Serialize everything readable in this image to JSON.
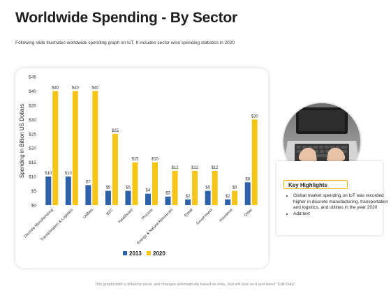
{
  "page": {
    "title": "Worldwide Spending - By Sector",
    "subtitle": "Following slide illustrates worldwide spending graph on IoT. It includes sector wise spending statistics in 2020",
    "footer": "This graph/chart is linked to excel, and changes automatically based on data. Just left click on it and select \"Edit Data\"."
  },
  "highlights": {
    "heading": "Key Highlights",
    "items": [
      "Global market spending on IoT was recorded higher in discrete manufacturing, transportation and logistics, and utilities in the year 2020",
      "Add text"
    ]
  },
  "photo": {
    "icon": "laptop-typing-photo"
  },
  "chart_data": {
    "type": "bar",
    "title": "",
    "xlabel": "",
    "ylabel": "Spending in Billion US Dollars",
    "ylim": [
      0,
      45
    ],
    "yticks": [
      "$0",
      "$5",
      "$10",
      "$15",
      "$20",
      "$25",
      "$30",
      "$35",
      "$40",
      "$45"
    ],
    "grid": false,
    "legend": "bottom",
    "categories": [
      "Discrete Manufacturing",
      "Transportation & Logistics",
      "Utilities",
      "B2C",
      "Healthcare",
      "Process",
      "Energy & Natural Resources",
      "Retail",
      "Government",
      "Insurance",
      "Other"
    ],
    "series": [
      {
        "name": "2013",
        "color": "#2e62a8",
        "values": [
          10,
          10,
          7,
          5,
          5,
          4,
          3,
          2,
          5,
          2,
          8
        ],
        "labels": [
          "$10",
          "$10",
          "$7",
          "$5",
          "$5",
          "$4",
          "$3",
          "$2",
          "$5",
          "$2",
          "$8"
        ]
      },
      {
        "name": "2020",
        "color": "#f5c518",
        "values": [
          40,
          40,
          40,
          25,
          15,
          15,
          12,
          12,
          12,
          5,
          30
        ],
        "labels": [
          "$40",
          "$40",
          "$40",
          "$25",
          "$15",
          "$15",
          "$12",
          "$12",
          "$12",
          "$5",
          "$30"
        ]
      }
    ]
  }
}
